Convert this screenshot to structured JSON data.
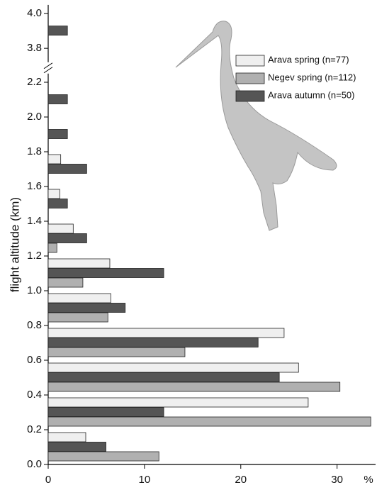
{
  "chart_data": {
    "type": "hbar_histogram",
    "y_label": "flight altitude (km)",
    "x_label": "%",
    "bins": [
      [
        0,
        0.2
      ],
      [
        0.2,
        0.4
      ],
      [
        0.4,
        0.6
      ],
      [
        0.6,
        0.8
      ],
      [
        0.8,
        1.0
      ],
      [
        1.0,
        1.2
      ],
      [
        1.2,
        1.4
      ],
      [
        1.4,
        1.6
      ],
      [
        1.6,
        1.8
      ],
      [
        1.8,
        2.0
      ],
      [
        2.0,
        2.2
      ],
      [
        3.8,
        4.0
      ]
    ],
    "series": [
      {
        "name": "Arava spring (n=77)",
        "color": "#efefef",
        "values": [
          3.9,
          27,
          26,
          24.5,
          6.5,
          6.4,
          2.6,
          1.2,
          1.3,
          null,
          null,
          null
        ]
      },
      {
        "name": "Negev spring (n=112)",
        "color": "#b0b0b0",
        "values": [
          11.5,
          33.5,
          30.3,
          14.2,
          6.2,
          3.6,
          0.9,
          null,
          null,
          null,
          null,
          null
        ]
      },
      {
        "name": "Arava autumn (n=50)",
        "color": "#555555",
        "values": [
          6,
          12,
          24,
          21.8,
          8,
          12,
          4,
          2,
          4,
          2,
          2,
          2
        ]
      }
    ],
    "xlim": [
      0,
      34
    ],
    "xticks": [
      0,
      10,
      20,
      30
    ],
    "ylim": [
      0,
      4.05
    ],
    "y_break": [
      2.25,
      3.72
    ],
    "yticks": [
      {
        "value": 0,
        "label": "0.0"
      },
      0.2,
      0.4,
      0.6,
      0.8,
      {
        "value": 1,
        "label": "1.0"
      },
      1.2,
      1.4,
      1.6,
      1.8,
      {
        "value": 2,
        "label": "2.0"
      },
      2.2,
      3.8,
      {
        "value": 4,
        "label": "4.0"
      }
    ],
    "legend": "top-right"
  }
}
